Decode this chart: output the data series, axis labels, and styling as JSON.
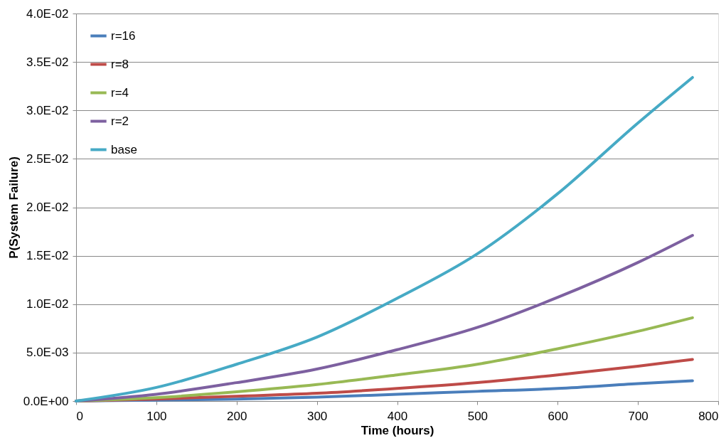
{
  "chart_data": {
    "type": "line",
    "xlabel": "Time (hours)",
    "ylabel": "P(System Failure)",
    "x": [
      0,
      100,
      200,
      300,
      400,
      500,
      600,
      700,
      768
    ],
    "series": [
      {
        "name": "r=16",
        "color": "#4a7ebb",
        "values": [
          0,
          0.0001,
          0.0002,
          0.0004,
          0.0007,
          0.001,
          0.0013,
          0.0018,
          0.0021
        ]
      },
      {
        "name": "r=8",
        "color": "#be4b48",
        "values": [
          0,
          0.0002,
          0.0005,
          0.0008,
          0.0013,
          0.0019,
          0.0027,
          0.0036,
          0.0043
        ]
      },
      {
        "name": "r=4",
        "color": "#98b954",
        "values": [
          0,
          0.00035,
          0.00095,
          0.0017,
          0.0027,
          0.0038,
          0.0054,
          0.0072,
          0.0086
        ]
      },
      {
        "name": "r=2",
        "color": "#7d60a0",
        "values": [
          0,
          0.0007,
          0.0019,
          0.0033,
          0.0053,
          0.0076,
          0.0107,
          0.0143,
          0.0171
        ]
      },
      {
        "name": "base",
        "color": "#46aac5",
        "values": [
          0,
          0.0014,
          0.0038,
          0.0066,
          0.0106,
          0.0152,
          0.0214,
          0.0287,
          0.0334
        ]
      }
    ],
    "xlim": [
      0,
      800
    ],
    "xticks": [
      0,
      100,
      200,
      300,
      400,
      500,
      600,
      700,
      800
    ],
    "ylim": [
      0,
      0.04
    ],
    "yticks": [
      {
        "value": 0,
        "label": "0.0E+00"
      },
      {
        "value": 0.005,
        "label": "5.0E-03"
      },
      {
        "value": 0.01,
        "label": "1.0E-02"
      },
      {
        "value": 0.015,
        "label": "1.5E-02"
      },
      {
        "value": 0.02,
        "label": "2.0E-02"
      },
      {
        "value": 0.025,
        "label": "2.5E-02"
      },
      {
        "value": 0.03,
        "label": "3.0E-02"
      },
      {
        "value": 0.035,
        "label": "3.5E-02"
      },
      {
        "value": 0.04,
        "label": "4.0E-02"
      }
    ],
    "grid": "y",
    "legend": "top left",
    "marker": "none",
    "line_style": "solid"
  }
}
